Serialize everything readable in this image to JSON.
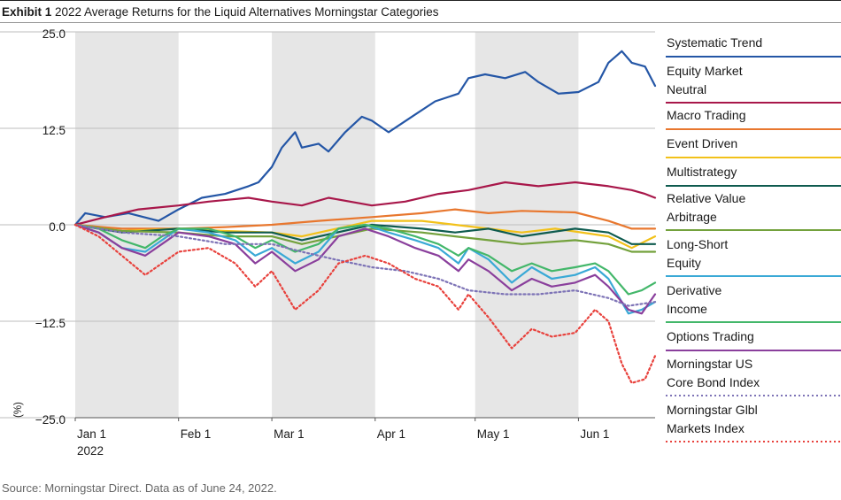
{
  "header": {
    "exhibit": "Exhibit 1",
    "title": "2022 Average Returns for the Liquid Alternatives Morningstar Categories"
  },
  "footer": {
    "source": "Source: Morningstar Direct.  Data as of June 24, 2022."
  },
  "chart_data": {
    "type": "line",
    "title": "2022 Average Returns for the Liquid Alternatives Morningstar Categories",
    "ylabel": "(%)",
    "ylim": [
      -25,
      25
    ],
    "yticks": [
      25,
      12.5,
      0,
      -12.5,
      -25
    ],
    "ytick_labels": [
      "25.0",
      "12.5",
      "0.0",
      "−12.5",
      "−25.0"
    ],
    "xlim": [
      "2022-01-01",
      "2022-06-24"
    ],
    "xticks": [
      {
        "date": "2022-01-01",
        "label": "Jan 1",
        "sublabel": "2022"
      },
      {
        "date": "2022-02-01",
        "label": "Feb 1"
      },
      {
        "date": "2022-03-01",
        "label": "Mar 1"
      },
      {
        "date": "2022-04-01",
        "label": "Apr 1"
      },
      {
        "date": "2022-05-01",
        "label": "May 1"
      },
      {
        "date": "2022-06-01",
        "label": "Jun 1"
      }
    ],
    "shaded_bands": [
      [
        "2022-01-01",
        "2022-02-01"
      ],
      [
        "2022-03-01",
        "2022-04-01"
      ],
      [
        "2022-05-01",
        "2022-06-01"
      ]
    ],
    "grid": "horizontal",
    "legend_position": "right",
    "series": [
      {
        "name": "Systematic Trend",
        "color": "#2456a6",
        "dash": false,
        "points": [
          [
            "2022-01-01",
            0
          ],
          [
            "2022-01-04",
            1.5
          ],
          [
            "2022-01-10",
            1
          ],
          [
            "2022-01-17",
            1.5
          ],
          [
            "2022-01-26",
            0.5
          ],
          [
            "2022-02-01",
            2
          ],
          [
            "2022-02-08",
            3.5
          ],
          [
            "2022-02-15",
            4
          ],
          [
            "2022-02-22",
            5
          ],
          [
            "2022-02-25",
            5.5
          ],
          [
            "2022-03-01",
            7.5
          ],
          [
            "2022-03-04",
            10
          ],
          [
            "2022-03-08",
            12
          ],
          [
            "2022-03-10",
            10
          ],
          [
            "2022-03-15",
            10.5
          ],
          [
            "2022-03-18",
            9.5
          ],
          [
            "2022-03-23",
            12
          ],
          [
            "2022-03-28",
            14
          ],
          [
            "2022-03-31",
            13.5
          ],
          [
            "2022-04-05",
            12
          ],
          [
            "2022-04-12",
            14
          ],
          [
            "2022-04-19",
            16
          ],
          [
            "2022-04-26",
            17
          ],
          [
            "2022-04-29",
            19
          ],
          [
            "2022-05-04",
            19.5
          ],
          [
            "2022-05-10",
            19
          ],
          [
            "2022-05-16",
            19.8
          ],
          [
            "2022-05-20",
            18.5
          ],
          [
            "2022-05-26",
            17
          ],
          [
            "2022-06-01",
            17.2
          ],
          [
            "2022-06-07",
            18.5
          ],
          [
            "2022-06-10",
            21
          ],
          [
            "2022-06-14",
            22.5
          ],
          [
            "2022-06-17",
            21
          ],
          [
            "2022-06-21",
            20.5
          ],
          [
            "2022-06-24",
            18
          ]
        ]
      },
      {
        "name": "Equity Market Neutral",
        "color": "#a8174a",
        "dash": false,
        "points": [
          [
            "2022-01-01",
            0
          ],
          [
            "2022-01-10",
            1
          ],
          [
            "2022-01-20",
            2
          ],
          [
            "2022-02-01",
            2.5
          ],
          [
            "2022-02-10",
            3
          ],
          [
            "2022-02-22",
            3.5
          ],
          [
            "2022-03-01",
            3
          ],
          [
            "2022-03-10",
            2.5
          ],
          [
            "2022-03-18",
            3.5
          ],
          [
            "2022-03-31",
            2.5
          ],
          [
            "2022-04-10",
            3
          ],
          [
            "2022-04-20",
            4
          ],
          [
            "2022-04-29",
            4.5
          ],
          [
            "2022-05-10",
            5.5
          ],
          [
            "2022-05-20",
            5
          ],
          [
            "2022-05-31",
            5.5
          ],
          [
            "2022-06-10",
            5
          ],
          [
            "2022-06-17",
            4.5
          ],
          [
            "2022-06-21",
            4
          ],
          [
            "2022-06-24",
            3.5
          ]
        ]
      },
      {
        "name": "Macro Trading",
        "color": "#e8772e",
        "dash": false,
        "points": [
          [
            "2022-01-01",
            0
          ],
          [
            "2022-01-15",
            -0.5
          ],
          [
            "2022-02-01",
            -0.5
          ],
          [
            "2022-02-15",
            -0.3
          ],
          [
            "2022-03-01",
            0
          ],
          [
            "2022-03-15",
            0.5
          ],
          [
            "2022-03-31",
            1
          ],
          [
            "2022-04-15",
            1.5
          ],
          [
            "2022-04-25",
            2
          ],
          [
            "2022-05-05",
            1.5
          ],
          [
            "2022-05-15",
            1.8
          ],
          [
            "2022-05-31",
            1.6
          ],
          [
            "2022-06-10",
            0.5
          ],
          [
            "2022-06-17",
            -0.5
          ],
          [
            "2022-06-24",
            -0.5
          ]
        ]
      },
      {
        "name": "Event Driven",
        "color": "#f2c11a",
        "dash": false,
        "points": [
          [
            "2022-01-01",
            0
          ],
          [
            "2022-01-15",
            -0.8
          ],
          [
            "2022-02-01",
            -0.5
          ],
          [
            "2022-02-15",
            -0.8
          ],
          [
            "2022-03-01",
            -1
          ],
          [
            "2022-03-10",
            -1.5
          ],
          [
            "2022-03-31",
            0.5
          ],
          [
            "2022-04-15",
            0.5
          ],
          [
            "2022-04-25",
            0
          ],
          [
            "2022-05-05",
            -0.5
          ],
          [
            "2022-05-15",
            -1
          ],
          [
            "2022-05-25",
            -0.5
          ],
          [
            "2022-06-10",
            -1.5
          ],
          [
            "2022-06-17",
            -3
          ],
          [
            "2022-06-24",
            -1.5
          ]
        ]
      },
      {
        "name": "Multistrategy",
        "color": "#0e5b4f",
        "dash": false,
        "points": [
          [
            "2022-01-01",
            0
          ],
          [
            "2022-01-15",
            -1
          ],
          [
            "2022-02-01",
            -0.5
          ],
          [
            "2022-02-15",
            -1
          ],
          [
            "2022-03-01",
            -1
          ],
          [
            "2022-03-10",
            -2
          ],
          [
            "2022-03-31",
            0
          ],
          [
            "2022-04-15",
            -0.5
          ],
          [
            "2022-04-25",
            -1
          ],
          [
            "2022-05-05",
            -0.5
          ],
          [
            "2022-05-15",
            -1.5
          ],
          [
            "2022-05-31",
            -0.5
          ],
          [
            "2022-06-10",
            -1
          ],
          [
            "2022-06-17",
            -2.5
          ],
          [
            "2022-06-24",
            -2.5
          ]
        ]
      },
      {
        "name": "Relative Value Arbitrage",
        "color": "#73a13c",
        "dash": false,
        "points": [
          [
            "2022-01-01",
            0
          ],
          [
            "2022-01-15",
            -0.8
          ],
          [
            "2022-02-01",
            -1
          ],
          [
            "2022-02-15",
            -1.5
          ],
          [
            "2022-03-01",
            -1.5
          ],
          [
            "2022-03-10",
            -2.5
          ],
          [
            "2022-03-31",
            -0.5
          ],
          [
            "2022-04-15",
            -1
          ],
          [
            "2022-04-25",
            -1.5
          ],
          [
            "2022-05-05",
            -2
          ],
          [
            "2022-05-15",
            -2.5
          ],
          [
            "2022-05-31",
            -2
          ],
          [
            "2022-06-10",
            -2.5
          ],
          [
            "2022-06-17",
            -3.5
          ],
          [
            "2022-06-24",
            -3.5
          ]
        ]
      },
      {
        "name": "Long-Short Equity",
        "color": "#3aa9d6",
        "dash": false,
        "points": [
          [
            "2022-01-01",
            0
          ],
          [
            "2022-01-08",
            -1
          ],
          [
            "2022-01-15",
            -3
          ],
          [
            "2022-01-22",
            -3.5
          ],
          [
            "2022-01-27",
            -2
          ],
          [
            "2022-02-01",
            -0.5
          ],
          [
            "2022-02-10",
            -1
          ],
          [
            "2022-02-18",
            -2
          ],
          [
            "2022-02-24",
            -4
          ],
          [
            "2022-03-01",
            -3
          ],
          [
            "2022-03-08",
            -5
          ],
          [
            "2022-03-15",
            -3.5
          ],
          [
            "2022-03-21",
            -0.5
          ],
          [
            "2022-03-29",
            0
          ],
          [
            "2022-04-05",
            -1
          ],
          [
            "2022-04-13",
            -2
          ],
          [
            "2022-04-20",
            -3
          ],
          [
            "2022-04-26",
            -5
          ],
          [
            "2022-04-29",
            -3
          ],
          [
            "2022-05-05",
            -4.5
          ],
          [
            "2022-05-12",
            -7.5
          ],
          [
            "2022-05-18",
            -5.5
          ],
          [
            "2022-05-24",
            -7
          ],
          [
            "2022-05-31",
            -6.5
          ],
          [
            "2022-06-06",
            -5.5
          ],
          [
            "2022-06-10",
            -7
          ],
          [
            "2022-06-16",
            -11.5
          ],
          [
            "2022-06-20",
            -11
          ],
          [
            "2022-06-24",
            -10
          ]
        ]
      },
      {
        "name": "Derivative Income",
        "color": "#43b76a",
        "dash": false,
        "points": [
          [
            "2022-01-01",
            0
          ],
          [
            "2022-01-08",
            -0.5
          ],
          [
            "2022-01-15",
            -2
          ],
          [
            "2022-01-22",
            -3
          ],
          [
            "2022-01-27",
            -1.5
          ],
          [
            "2022-02-01",
            -0.5
          ],
          [
            "2022-02-10",
            -0.5
          ],
          [
            "2022-02-18",
            -1.5
          ],
          [
            "2022-02-24",
            -3
          ],
          [
            "2022-03-01",
            -2
          ],
          [
            "2022-03-08",
            -3.5
          ],
          [
            "2022-03-15",
            -2.5
          ],
          [
            "2022-03-21",
            -0.5
          ],
          [
            "2022-03-29",
            0
          ],
          [
            "2022-04-05",
            -0.5
          ],
          [
            "2022-04-13",
            -1.5
          ],
          [
            "2022-04-20",
            -2.5
          ],
          [
            "2022-04-26",
            -4
          ],
          [
            "2022-04-29",
            -3
          ],
          [
            "2022-05-05",
            -4
          ],
          [
            "2022-05-12",
            -6
          ],
          [
            "2022-05-18",
            -5
          ],
          [
            "2022-05-24",
            -6
          ],
          [
            "2022-05-31",
            -5.5
          ],
          [
            "2022-06-06",
            -5
          ],
          [
            "2022-06-10",
            -6
          ],
          [
            "2022-06-16",
            -9
          ],
          [
            "2022-06-20",
            -8.5
          ],
          [
            "2022-06-24",
            -7.5
          ]
        ]
      },
      {
        "name": "Options Trading",
        "color": "#8a3f9c",
        "dash": false,
        "points": [
          [
            "2022-01-01",
            0
          ],
          [
            "2022-01-08",
            -1
          ],
          [
            "2022-01-15",
            -3
          ],
          [
            "2022-01-22",
            -4
          ],
          [
            "2022-01-27",
            -2.5
          ],
          [
            "2022-02-01",
            -1
          ],
          [
            "2022-02-10",
            -1.5
          ],
          [
            "2022-02-18",
            -2.5
          ],
          [
            "2022-02-24",
            -5
          ],
          [
            "2022-03-01",
            -3.5
          ],
          [
            "2022-03-08",
            -6
          ],
          [
            "2022-03-15",
            -4.5
          ],
          [
            "2022-03-21",
            -1.5
          ],
          [
            "2022-03-29",
            -0.5
          ],
          [
            "2022-04-05",
            -1.5
          ],
          [
            "2022-04-13",
            -3
          ],
          [
            "2022-04-20",
            -4
          ],
          [
            "2022-04-26",
            -6
          ],
          [
            "2022-04-29",
            -4.5
          ],
          [
            "2022-05-05",
            -6
          ],
          [
            "2022-05-12",
            -8.5
          ],
          [
            "2022-05-18",
            -7
          ],
          [
            "2022-05-24",
            -8
          ],
          [
            "2022-05-31",
            -7.5
          ],
          [
            "2022-06-06",
            -6.5
          ],
          [
            "2022-06-10",
            -8
          ],
          [
            "2022-06-16",
            -11
          ],
          [
            "2022-06-20",
            -11.5
          ],
          [
            "2022-06-24",
            -9
          ]
        ]
      },
      {
        "name": "Morningstar US Core Bond Index",
        "color": "#7d73b6",
        "dash": true,
        "points": [
          [
            "2022-01-01",
            0
          ],
          [
            "2022-01-15",
            -1
          ],
          [
            "2022-02-01",
            -1.5
          ],
          [
            "2022-02-15",
            -2.5
          ],
          [
            "2022-03-01",
            -2.5
          ],
          [
            "2022-03-10",
            -3.5
          ],
          [
            "2022-03-20",
            -4.5
          ],
          [
            "2022-03-31",
            -5.5
          ],
          [
            "2022-04-10",
            -6
          ],
          [
            "2022-04-20",
            -7
          ],
          [
            "2022-04-29",
            -8.5
          ],
          [
            "2022-05-10",
            -9
          ],
          [
            "2022-05-20",
            -9
          ],
          [
            "2022-05-31",
            -8.5
          ],
          [
            "2022-06-10",
            -9.5
          ],
          [
            "2022-06-16",
            -10.5
          ],
          [
            "2022-06-24",
            -10
          ]
        ]
      },
      {
        "name": "Morningstar Glbl Markets Index",
        "color": "#e8413c",
        "dash": true,
        "points": [
          [
            "2022-01-01",
            0
          ],
          [
            "2022-01-08",
            -1.5
          ],
          [
            "2022-01-15",
            -4
          ],
          [
            "2022-01-22",
            -6.5
          ],
          [
            "2022-01-27",
            -5
          ],
          [
            "2022-02-01",
            -3.5
          ],
          [
            "2022-02-10",
            -3
          ],
          [
            "2022-02-18",
            -5
          ],
          [
            "2022-02-24",
            -8
          ],
          [
            "2022-03-01",
            -6
          ],
          [
            "2022-03-08",
            -11
          ],
          [
            "2022-03-15",
            -8.5
          ],
          [
            "2022-03-21",
            -5
          ],
          [
            "2022-03-29",
            -4
          ],
          [
            "2022-04-05",
            -5
          ],
          [
            "2022-04-13",
            -7
          ],
          [
            "2022-04-20",
            -8
          ],
          [
            "2022-04-26",
            -11
          ],
          [
            "2022-04-29",
            -9
          ],
          [
            "2022-05-05",
            -12
          ],
          [
            "2022-05-12",
            -16
          ],
          [
            "2022-05-18",
            -13.5
          ],
          [
            "2022-05-24",
            -14.5
          ],
          [
            "2022-05-31",
            -14
          ],
          [
            "2022-06-06",
            -11
          ],
          [
            "2022-06-10",
            -12.5
          ],
          [
            "2022-06-14",
            -18
          ],
          [
            "2022-06-17",
            -20.5
          ],
          [
            "2022-06-21",
            -20
          ],
          [
            "2022-06-24",
            -17
          ]
        ]
      }
    ]
  }
}
